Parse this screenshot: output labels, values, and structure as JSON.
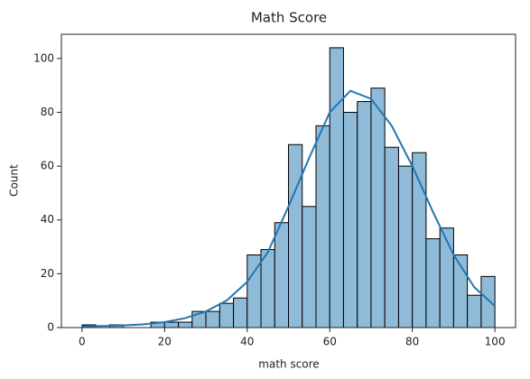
{
  "chart_data": {
    "type": "histogram",
    "title": "Math Score",
    "x_label": "math score",
    "y_label": "Count",
    "bins": [
      0,
      3.33,
      6.67,
      10,
      13.33,
      16.67,
      20,
      23.33,
      26.67,
      30,
      33.33,
      36.67,
      40,
      43.33,
      46.67,
      50,
      53.33,
      56.67,
      60,
      63.33,
      66.67,
      70,
      73.33,
      76.67,
      80,
      83.33,
      86.67,
      90,
      93.33,
      96.67,
      100
    ],
    "values": [
      1,
      0,
      1,
      0,
      0,
      2,
      2,
      2,
      6,
      6,
      9,
      11,
      27,
      29,
      39,
      68,
      45,
      75,
      104,
      80,
      84,
      89,
      67,
      60,
      65,
      33,
      37,
      27,
      12,
      19
    ],
    "color": "#8fbbd9",
    "edge_color": "#000000",
    "kde": {
      "color": "#1f77b4",
      "x": [
        0,
        5,
        10,
        15,
        20,
        25,
        30,
        35,
        40,
        45,
        50,
        55,
        60,
        65,
        70,
        75,
        80,
        85,
        90,
        95,
        100
      ],
      "values": [
        0.5,
        0.6,
        0.8,
        1.2,
        2,
        3.5,
        6,
        10,
        17,
        28,
        45,
        63,
        80,
        88,
        85,
        75,
        60,
        43,
        27,
        15,
        8
      ]
    },
    "xlim": [
      -5,
      105
    ],
    "ylim": [
      0,
      109
    ],
    "xticks": [
      0,
      20,
      40,
      60,
      80,
      100
    ],
    "yticks": [
      0,
      20,
      40,
      60,
      80,
      100
    ]
  }
}
